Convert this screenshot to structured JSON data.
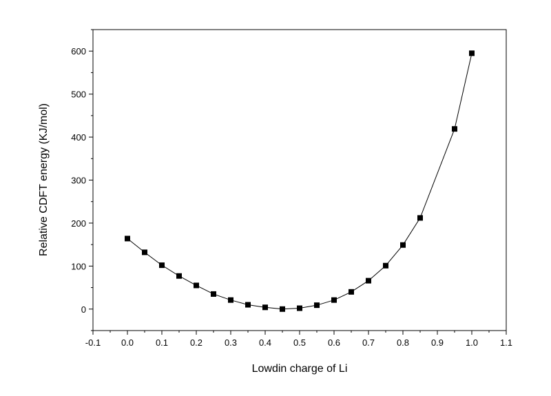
{
  "chart_data": {
    "type": "scatter",
    "title": "",
    "xlabel": "Lowdin charge of Li",
    "ylabel": "Relative CDFT energy (KJ/mol)",
    "xlim": [
      -0.1,
      1.1
    ],
    "ylim": [
      -50,
      650
    ],
    "xticks": [
      "-0.1",
      "0.0",
      "0.1",
      "0.2",
      "0.3",
      "0.4",
      "0.5",
      "0.6",
      "0.7",
      "0.8",
      "0.9",
      "1.0",
      "1.1"
    ],
    "yticks": [
      "0",
      "100",
      "200",
      "300",
      "400",
      "500",
      "600"
    ],
    "grid": false,
    "legend": "none",
    "marker": "square",
    "marker_color": "#000000",
    "line_color": "#000000",
    "series": [
      {
        "x": [
          0.0,
          0.05,
          0.1,
          0.15,
          0.2,
          0.25,
          0.3,
          0.35,
          0.4,
          0.45,
          0.5,
          0.55,
          0.6,
          0.65,
          0.7,
          0.75,
          0.8,
          0.85,
          0.95,
          1.0
        ],
        "y": [
          164,
          132,
          102,
          77,
          55,
          35,
          21,
          10,
          4,
          0,
          2,
          9,
          21,
          40,
          66,
          101,
          149,
          212,
          419,
          595
        ]
      }
    ]
  }
}
